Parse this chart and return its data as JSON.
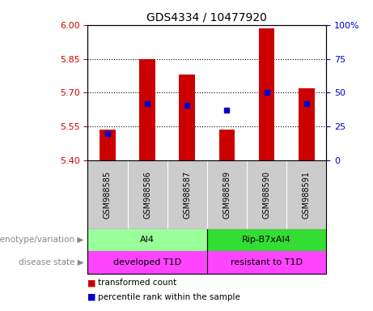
{
  "title": "GDS4334 / 10477920",
  "samples": [
    "GSM988585",
    "GSM988586",
    "GSM988587",
    "GSM988589",
    "GSM988590",
    "GSM988591"
  ],
  "bar_bottoms": [
    5.4,
    5.4,
    5.4,
    5.4,
    5.4,
    5.4
  ],
  "bar_tops": [
    5.535,
    5.85,
    5.78,
    5.535,
    5.985,
    5.72
  ],
  "percentile_ranks": [
    20,
    42,
    41,
    37,
    50,
    42
  ],
  "ylim_left": [
    5.4,
    6.0
  ],
  "ylim_right": [
    0,
    100
  ],
  "yticks_left": [
    5.4,
    5.55,
    5.7,
    5.85,
    6.0
  ],
  "yticks_right": [
    0,
    25,
    50,
    75,
    100
  ],
  "hlines": [
    5.55,
    5.7,
    5.85
  ],
  "bar_color": "#cc0000",
  "dot_color": "#0000cc",
  "genotype_labels": [
    "AI4",
    "Rip-B7xAI4"
  ],
  "genotype_color1": "#99ff99",
  "genotype_color2": "#33dd33",
  "disease_labels": [
    "developed T1D",
    "resistant to T1D"
  ],
  "disease_color": "#ff44ff",
  "legend_red": "transformed count",
  "legend_blue": "percentile rank within the sample",
  "label_genotype": "genotype/variation",
  "label_disease": "disease state",
  "tick_color_left": "#cc0000",
  "tick_color_right": "#0000cc",
  "sample_bg_color": "#cccccc",
  "plot_bg_color": "#ffffff"
}
